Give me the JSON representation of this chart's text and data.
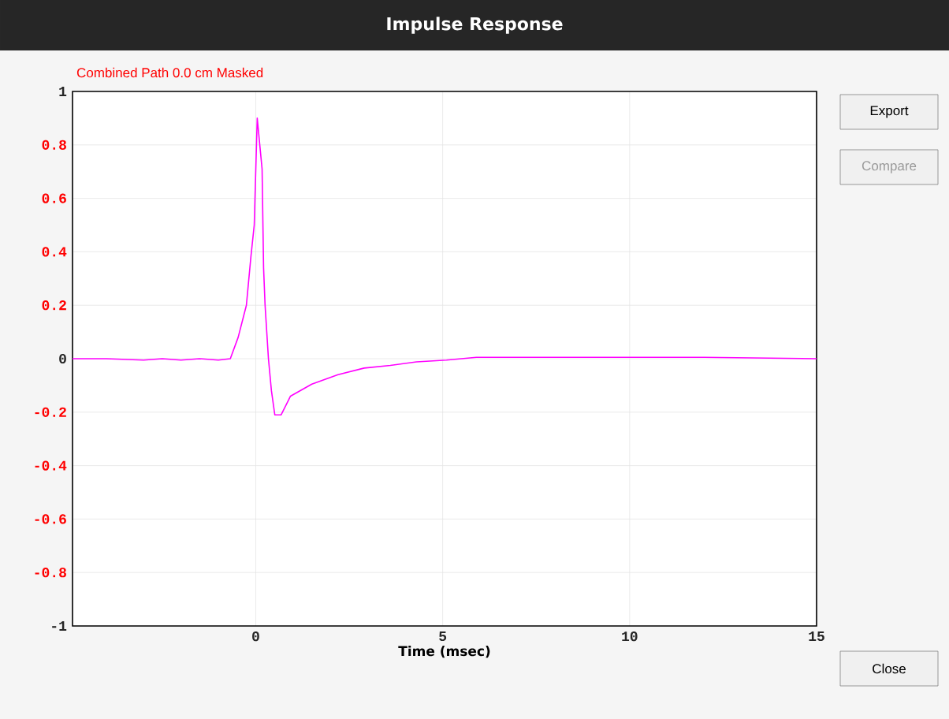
{
  "chart_data": {
    "type": "line",
    "title": "Impulse Response",
    "subtitle": "Combined   Path 0.0 cm     Masked",
    "xlabel": "Time (msec)",
    "x": [
      -4.9,
      -4,
      -3,
      -2.5,
      -2,
      -1.5,
      -1,
      -0.68,
      -0.47,
      -0.25,
      -0.13,
      -0.04,
      0.04,
      0.17,
      0.21,
      0.25,
      0.34,
      0.42,
      0.51,
      0.68,
      0.93,
      1.5,
      2.2,
      2.9,
      3.6,
      4.3,
      5.1,
      5.9,
      8,
      10,
      12,
      15
    ],
    "series": [
      {
        "color": "#ff00ff",
        "values": [
          0,
          0,
          -0.005,
          0,
          -0.005,
          0,
          -0.005,
          0,
          0.08,
          0.2,
          0.38,
          0.5,
          0.9,
          0.71,
          0.34,
          0.2,
          0,
          -0.12,
          -0.21,
          -0.21,
          -0.14,
          -0.095,
          -0.06,
          -0.035,
          -0.025,
          -0.012,
          -0.005,
          0.005,
          0.005,
          0.005,
          0.005,
          0
        ]
      }
    ],
    "xlim": [
      -4.9,
      15
    ],
    "ylim": [
      -1,
      1
    ],
    "xticks": [
      0,
      5,
      10,
      15
    ],
    "yticks": [
      -1,
      -0.8,
      -0.6,
      -0.4,
      -0.2,
      0,
      0.2,
      0.4,
      0.6,
      0.8,
      1
    ],
    "grid": true,
    "marker": "none",
    "line_style": "solid",
    "annotations": [
      "Export",
      "Compare",
      "Close"
    ]
  }
}
